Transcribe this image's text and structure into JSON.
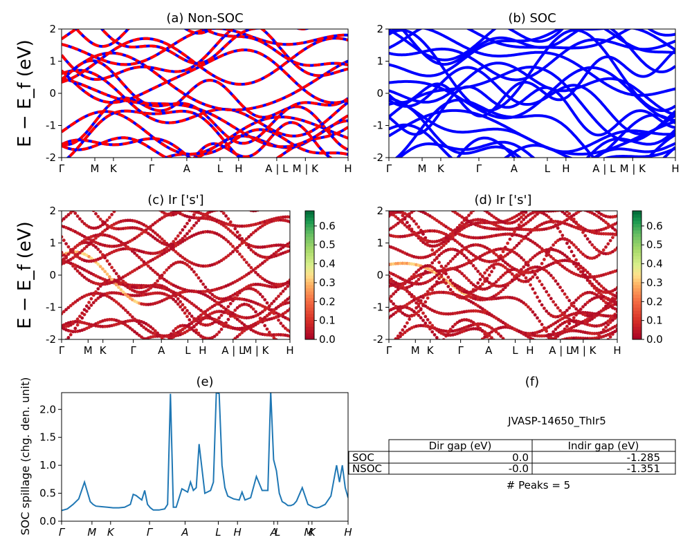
{
  "ylabel_band": "E − E_f (eV)",
  "ylabel_spillage": "SOC spillage (chg. den. unit)",
  "kpath_labels": [
    "Γ",
    "M",
    "K",
    "Γ",
    "A",
    "L",
    "H",
    "A | L",
    "M | K",
    "H"
  ],
  "kpath_labels_colorbar_panels": [
    "Γ",
    "M",
    "K",
    "Γ",
    "A",
    "L",
    "H",
    "A | L",
    "M | K",
    "H"
  ],
  "kpath_labels_spillage": [
    "Γ",
    "M",
    "K",
    "Γ",
    "A",
    "L",
    "H",
    "A",
    "L",
    "M",
    "K",
    "H"
  ],
  "chart_data": [
    {
      "id": "a",
      "type": "line",
      "title": "(a) Non-SOC",
      "ylim": [
        -2,
        2
      ],
      "yticks": [
        -2,
        -1,
        0,
        1,
        2
      ],
      "colors": {
        "up": "#0000ff",
        "down": "#ff0000"
      },
      "style": "spin-up solid blue overlaid by spin-down dashed red"
    },
    {
      "id": "b",
      "type": "line",
      "title": "(b) SOC",
      "ylim": [
        -2,
        2
      ],
      "yticks": [
        -2,
        -1,
        0,
        1,
        2
      ],
      "colors": {
        "band": "#0000ff"
      }
    },
    {
      "id": "c",
      "type": "scatter",
      "title": "(c)  Ir ['s']",
      "ylim": [
        -2,
        2
      ],
      "yticks": [
        -2,
        -1,
        0,
        1,
        2
      ],
      "colorbar": {
        "min": 0.0,
        "max": 0.68,
        "ticks": [
          "0.0",
          "0.1",
          "0.2",
          "0.3",
          "0.4",
          "0.5",
          "0.6"
        ],
        "colormap": "RdYlGn"
      }
    },
    {
      "id": "d",
      "type": "scatter",
      "title": "(d) Ir ['s']",
      "ylim": [
        -2,
        2
      ],
      "yticks": [
        -2,
        -1,
        0,
        1,
        2
      ],
      "colorbar": {
        "min": 0.0,
        "max": 0.68,
        "ticks": [
          "0.0",
          "0.1",
          "0.2",
          "0.3",
          "0.4",
          "0.5",
          "0.6"
        ],
        "colormap": "RdYlGn"
      }
    },
    {
      "id": "e",
      "type": "line",
      "title": "(e)",
      "ylim": [
        0,
        2.3
      ],
      "yticks": [
        "0.0",
        "0.5",
        "1.0",
        "1.5",
        "2.0"
      ],
      "color": "#1f77b4",
      "x": [
        0,
        0.02,
        0.04,
        0.06,
        0.08,
        0.1,
        0.11,
        0.12,
        0.14,
        0.16,
        0.18,
        0.2,
        0.22,
        0.24,
        0.25,
        0.26,
        0.28,
        0.29,
        0.3,
        0.31,
        0.32,
        0.34,
        0.36,
        0.37,
        0.38,
        0.39,
        0.4,
        0.42,
        0.44,
        0.45,
        0.46,
        0.47,
        0.48,
        0.5,
        0.52,
        0.53,
        0.54,
        0.55,
        0.56,
        0.57,
        0.58,
        0.6,
        0.62,
        0.63,
        0.64,
        0.66,
        0.68,
        0.7,
        0.72,
        0.73,
        0.74,
        0.75,
        0.76,
        0.77,
        0.78,
        0.79,
        0.8,
        0.81,
        0.82,
        0.84,
        0.86,
        0.88,
        0.89,
        0.9,
        0.92,
        0.94,
        0.96,
        0.97,
        0.98,
        0.99,
        1.0
      ],
      "values": [
        0.19,
        0.22,
        0.3,
        0.4,
        0.7,
        0.35,
        0.3,
        0.27,
        0.26,
        0.25,
        0.24,
        0.24,
        0.25,
        0.3,
        0.48,
        0.46,
        0.38,
        0.55,
        0.3,
        0.24,
        0.2,
        0.2,
        0.22,
        0.3,
        2.28,
        0.25,
        0.25,
        0.58,
        0.52,
        0.7,
        0.55,
        0.6,
        1.38,
        0.5,
        0.55,
        0.7,
        2.3,
        2.28,
        1.0,
        0.6,
        0.45,
        0.4,
        0.38,
        0.52,
        0.38,
        0.42,
        0.8,
        0.55,
        0.55,
        2.32,
        1.1,
        0.9,
        0.5,
        0.35,
        0.32,
        0.28,
        0.28,
        0.3,
        0.36,
        0.6,
        0.3,
        0.25,
        0.24,
        0.25,
        0.3,
        0.45,
        1.0,
        0.7,
        1.0,
        0.6,
        0.42
      ]
    },
    {
      "id": "f",
      "type": "table",
      "title": "(f)",
      "caption": "JVASP-14650_ThIr5",
      "columns": [
        "Dir gap (eV)",
        "Indir gap (eV)"
      ],
      "rows": [
        {
          "label": "SOC",
          "values": [
            "0.0",
            "-1.285"
          ]
        },
        {
          "label": "NSOC",
          "values": [
            "-0.0",
            "-1.351"
          ]
        }
      ],
      "footer": "# Peaks = 5"
    }
  ]
}
